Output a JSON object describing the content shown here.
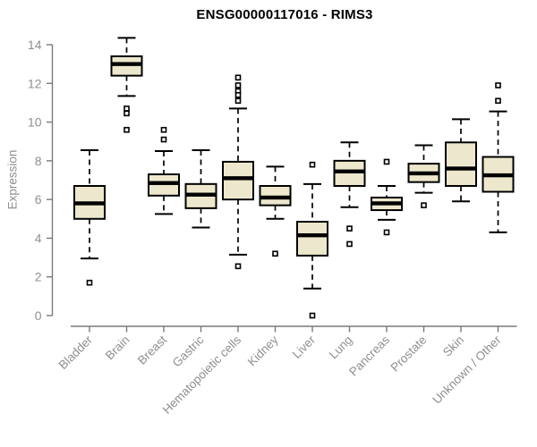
{
  "title": "ENSG00000117016 - RIMS3",
  "chart_data": {
    "type": "boxplot",
    "title": "ENSG00000117016 - RIMS3",
    "xlabel": "",
    "ylabel": "Expression",
    "ylim": [
      0,
      14
    ],
    "y_ticks": [
      0,
      2,
      4,
      6,
      8,
      10,
      12,
      14
    ],
    "grid": false,
    "legend": "none",
    "categories": [
      "Bladder",
      "Brain",
      "Breast",
      "Gastric",
      "Hematopoietic cells",
      "Kidney",
      "Liver",
      "Lung",
      "Pancreas",
      "Prostate",
      "Skin",
      "Unknown / Other"
    ],
    "series": [
      {
        "name": "Bladder",
        "low": 2.95,
        "q1": 5.0,
        "median": 5.8,
        "q3": 6.7,
        "high": 8.55,
        "outliers": [
          1.7
        ]
      },
      {
        "name": "Brain",
        "low": 11.35,
        "q1": 12.4,
        "median": 13.0,
        "q3": 13.4,
        "high": 14.35,
        "outliers": [
          10.7,
          10.45,
          9.6
        ]
      },
      {
        "name": "Breast",
        "low": 5.25,
        "q1": 6.2,
        "median": 6.85,
        "q3": 7.3,
        "high": 8.5,
        "outliers": [
          9.6,
          9.1
        ]
      },
      {
        "name": "Gastric",
        "low": 4.55,
        "q1": 5.55,
        "median": 6.25,
        "q3": 6.8,
        "high": 8.55,
        "outliers": []
      },
      {
        "name": "Hematopoietic cells",
        "low": 3.15,
        "q1": 6.0,
        "median": 7.1,
        "q3": 7.95,
        "high": 10.7,
        "outliers": [
          12.3,
          11.9,
          11.6,
          11.4,
          11.1,
          2.55
        ]
      },
      {
        "name": "Kidney",
        "low": 5.0,
        "q1": 5.7,
        "median": 6.1,
        "q3": 6.7,
        "high": 7.7,
        "outliers": [
          3.2
        ]
      },
      {
        "name": "Liver",
        "low": 1.4,
        "q1": 3.1,
        "median": 4.15,
        "q3": 4.85,
        "high": 6.8,
        "outliers": [
          7.8,
          0.0
        ]
      },
      {
        "name": "Lung",
        "low": 5.6,
        "q1": 6.7,
        "median": 7.45,
        "q3": 8.0,
        "high": 8.95,
        "outliers": [
          4.5,
          3.7
        ]
      },
      {
        "name": "Pancreas",
        "low": 4.95,
        "q1": 5.45,
        "median": 5.8,
        "q3": 6.1,
        "high": 6.7,
        "outliers": [
          7.95,
          4.3
        ]
      },
      {
        "name": "Prostate",
        "low": 6.35,
        "q1": 6.9,
        "median": 7.35,
        "q3": 7.85,
        "high": 8.8,
        "outliers": [
          5.7
        ]
      },
      {
        "name": "Skin",
        "low": 5.9,
        "q1": 6.7,
        "median": 7.6,
        "q3": 8.95,
        "high": 10.15,
        "outliers": []
      },
      {
        "name": "Unknown / Other",
        "low": 4.3,
        "q1": 6.4,
        "median": 7.25,
        "q3": 8.2,
        "high": 10.55,
        "outliers": [
          11.9,
          11.1
        ]
      }
    ],
    "colors": {
      "box_fill": "#EDE8CD",
      "box_stroke": "#000000",
      "median": "#000000",
      "whisker": "#000000",
      "outlier_stroke": "#000000",
      "outlier_fill": "#FFFFFF",
      "axis_line": "#7a7a7a",
      "axis_text": "#8f8f8f",
      "title_text": "#000000",
      "background": "#FFFFFF"
    }
  }
}
